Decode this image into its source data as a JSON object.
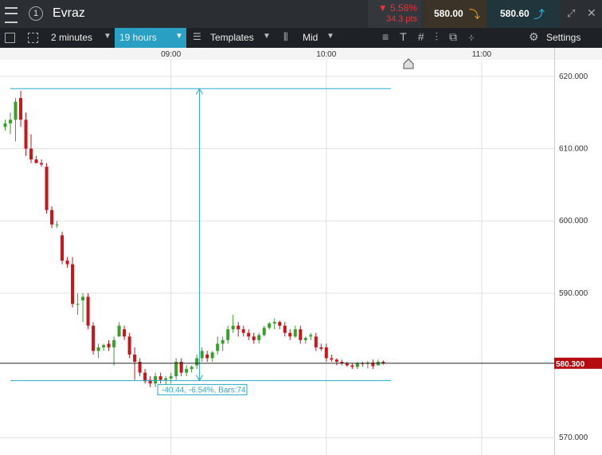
{
  "header": {
    "instrument": "Evraz",
    "change_pct": "▼ 5.58%",
    "change_pts": "34.3 pts",
    "sell": "580.00",
    "buy": "580.60"
  },
  "toolbar": {
    "interval": "2 minutes",
    "span": "19 hours",
    "templates": "Templates",
    "price_type": "Mid",
    "settings": "Settings"
  },
  "chart_data": {
    "type": "candlestick",
    "x": [
      476,
      478,
      480,
      482,
      484,
      486,
      488,
      490,
      492,
      494,
      496,
      498,
      500,
      502,
      504,
      506,
      508,
      510,
      512,
      514,
      516,
      518,
      520,
      522,
      524,
      526,
      528,
      530,
      532,
      534,
      536,
      538,
      540,
      542,
      544,
      546,
      548,
      550,
      552,
      554,
      556,
      558,
      560,
      562,
      564,
      566,
      568,
      570,
      572,
      574,
      576,
      578,
      580,
      582,
      584,
      586,
      588,
      590,
      592,
      594,
      596,
      598,
      600,
      602,
      604,
      606,
      608,
      610,
      612,
      614,
      616,
      618,
      620,
      622
    ],
    "open": [
      613,
      613.5,
      614,
      617,
      614,
      610,
      608.5,
      608,
      607.5,
      601.5,
      599.5,
      598,
      594.5,
      594,
      588.5,
      589,
      589.5,
      585.5,
      582,
      582.5,
      583,
      582.5,
      584,
      585,
      584,
      581.5,
      580.5,
      579,
      578,
      577.5,
      578.5,
      578,
      578.2,
      578.5,
      580.5,
      579,
      579.5,
      580,
      581,
      581.5,
      581,
      582,
      583,
      583.5,
      585,
      585.5,
      585,
      584.5,
      584,
      583.5,
      584.2,
      585.2,
      585.8,
      586,
      585.5,
      584.5,
      584,
      585,
      583.5,
      584,
      584,
      582.5,
      582.5,
      581,
      580.8,
      580.5,
      580.3,
      580,
      579.8,
      580.3,
      580.2,
      580.4,
      580,
      580.5
    ],
    "high": [
      614,
      615,
      617,
      618,
      615,
      612,
      609,
      608.5,
      608,
      602,
      600,
      598.5,
      595,
      595,
      590,
      590,
      590,
      586,
      583,
      583,
      583.5,
      584,
      586,
      585.5,
      584.5,
      582.5,
      581,
      579.5,
      578.5,
      579,
      579,
      578.5,
      579,
      581,
      581,
      580,
      580,
      581.5,
      582.5,
      582,
      582,
      584,
      584,
      585.5,
      587,
      586,
      585.5,
      585,
      584.5,
      584.5,
      585.5,
      586,
      586.5,
      586.2,
      586,
      585,
      585.5,
      585.5,
      584,
      584.5,
      584.5,
      583,
      583,
      581.5,
      581,
      580.8,
      580.5,
      580.3,
      580.5,
      580.5,
      580.6,
      580.8,
      580.8,
      580.7
    ],
    "low": [
      612.5,
      612,
      611,
      613,
      609,
      608,
      608,
      607.5,
      601,
      599,
      599,
      594,
      593.5,
      588,
      587,
      586,
      585,
      581.5,
      581,
      582,
      582,
      580,
      584,
      583.5,
      581,
      578,
      578.5,
      577.5,
      577,
      577,
      577.5,
      577,
      577.5,
      578,
      578.5,
      578.5,
      579,
      579.5,
      580.5,
      580.5,
      580.5,
      581.5,
      582,
      583,
      584.5,
      584,
      584,
      583.5,
      583,
      583,
      584,
      585,
      585,
      585,
      584,
      583.5,
      583.8,
      583,
      583,
      583.5,
      582,
      582,
      580.5,
      580.5,
      580,
      580,
      579.8,
      579.5,
      579.5,
      579.8,
      579.6,
      579.5,
      580,
      580.1
    ],
    "close": [
      613.5,
      614,
      616.5,
      614,
      610,
      608.5,
      608,
      607.8,
      601.5,
      599.5,
      599.5,
      594.5,
      594,
      588.5,
      588.5,
      589.5,
      585.5,
      582,
      582.5,
      582.8,
      582.5,
      583.5,
      585.5,
      584,
      581.5,
      580.5,
      579,
      577.8,
      577.5,
      578.5,
      578,
      578.2,
      578.5,
      580.5,
      579,
      579.5,
      579.8,
      581,
      582,
      581,
      581.8,
      583,
      583.5,
      585,
      585.5,
      585,
      584.5,
      584,
      583.5,
      584.2,
      585.2,
      585.8,
      586,
      585.5,
      584.5,
      584,
      585,
      583.5,
      583.8,
      584.2,
      582.5,
      582.3,
      581,
      580.8,
      580.5,
      580.3,
      580,
      579.8,
      580.3,
      580.2,
      580.4,
      579.9,
      580.5,
      580.3
    ],
    "up_color": "#3a9e2e",
    "down_color": "#c8161d",
    "xlim": [
      474,
      688
    ],
    "xticks": [
      {
        "value": 540,
        "label": "09:00"
      },
      {
        "value": 600,
        "label": "10:00"
      },
      {
        "value": 660,
        "label": "11:00"
      }
    ],
    "ylim": [
      567.6,
      622.3
    ],
    "yticks": [
      {
        "value": 570,
        "label": "570.000"
      },
      {
        "value": 590,
        "label": "590.000"
      },
      {
        "value": 600,
        "label": "600.000"
      },
      {
        "value": 610,
        "label": "610.000"
      },
      {
        "value": 620,
        "label": "620.000"
      }
    ],
    "grid": true,
    "current_price": {
      "value": 580.3,
      "label": "580.300"
    },
    "measure": {
      "top": 618.3,
      "bottom": 577.9,
      "x_start": 478,
      "x_end": 625,
      "x_arrow": 551,
      "label": "-40.44, -6.54%, Bars:74",
      "color": "#2aa9c9"
    }
  }
}
